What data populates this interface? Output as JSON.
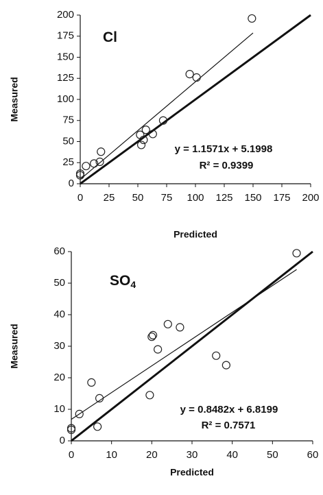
{
  "chart_data": [
    {
      "type": "scatter",
      "xlabel": "Predicted",
      "ylabel": "Measured",
      "label": {
        "text": "Cl"
      },
      "equation": "y = 1.1571x + 5.1998",
      "r2": "R² = 0.9399",
      "xlim": [
        0,
        200
      ],
      "ylim": [
        0,
        200
      ],
      "xticks": [
        0,
        25,
        50,
        75,
        100,
        125,
        150,
        175,
        200
      ],
      "yticks": [
        0,
        25,
        50,
        75,
        100,
        125,
        150,
        175,
        200
      ],
      "series": [
        {
          "type": "scatter",
          "color": "#222",
          "x": [
            0,
            0,
            5,
            12,
            17,
            18,
            52,
            53,
            55,
            57,
            63,
            72,
            95,
            101,
            149
          ],
          "y": [
            10,
            12,
            21,
            24,
            26,
            38,
            58,
            46,
            52,
            64,
            59,
            75,
            130,
            126,
            196
          ]
        },
        {
          "type": "line",
          "color": "#111",
          "width": 1.2,
          "x": [
            0,
            150
          ],
          "y": [
            5.2,
            178.8
          ]
        },
        {
          "type": "line",
          "color": "#111",
          "width": 3,
          "x": [
            0,
            200
          ],
          "y": [
            0,
            200
          ]
        }
      ]
    },
    {
      "type": "scatter",
      "xlabel": "Predicted",
      "ylabel": "Measured",
      "label": {
        "text": "SO",
        "subscript": "4"
      },
      "equation": "y = 0.8482x + 6.8199",
      "r2": "R² = 0.7571",
      "xlim": [
        0,
        60
      ],
      "ylim": [
        0,
        60
      ],
      "xticks": [
        0,
        10,
        20,
        30,
        40,
        50,
        60
      ],
      "yticks": [
        0,
        10,
        20,
        30,
        40,
        50,
        60
      ],
      "series": [
        {
          "type": "scatter",
          "color": "#222",
          "x": [
            0,
            0,
            2,
            5,
            6.5,
            7,
            19.5,
            20,
            20.3,
            21.5,
            24,
            27,
            36,
            38.5,
            56
          ],
          "y": [
            3.5,
            4,
            8.5,
            18.5,
            4.5,
            13.5,
            14.5,
            33,
            33.5,
            29,
            37,
            36,
            27,
            24,
            59.5
          ]
        },
        {
          "type": "line",
          "color": "#111",
          "width": 1.2,
          "x": [
            0,
            56
          ],
          "y": [
            6.82,
            54.32
          ]
        },
        {
          "type": "line",
          "color": "#111",
          "width": 3,
          "x": [
            0,
            60
          ],
          "y": [
            0,
            60
          ]
        }
      ]
    }
  ]
}
